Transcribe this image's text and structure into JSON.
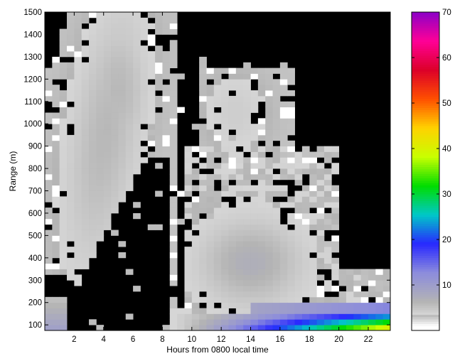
{
  "chart_data": {
    "type": "heatmap",
    "title": "",
    "xlabel": "Hours from 0800 local time",
    "ylabel": "Range (m)",
    "xlim": [
      0,
      23.5
    ],
    "ylim": [
      75,
      1500
    ],
    "x_ticks": [
      2,
      4,
      6,
      8,
      10,
      12,
      14,
      16,
      18,
      20,
      22
    ],
    "y_ticks": [
      100,
      200,
      300,
      400,
      500,
      600,
      700,
      800,
      900,
      1000,
      1100,
      1200,
      1300,
      1400,
      1500
    ],
    "colorbar": {
      "range": [
        0,
        70
      ],
      "ticks": [
        10,
        20,
        30,
        40,
        50,
        60,
        70
      ],
      "colormap": [
        "#ffffff",
        "#b4b4b4",
        "#8c8cdc",
        "#2828ff",
        "#00c8c8",
        "#00dc00",
        "#c8ff00",
        "#ffd200",
        "#ff5000",
        "#dc0028",
        "#ff0096",
        "#8c00c8"
      ]
    },
    "masked_color": "#000000",
    "grid": false,
    "time_step_hours": 0.5,
    "range_step_m": 25
  }
}
